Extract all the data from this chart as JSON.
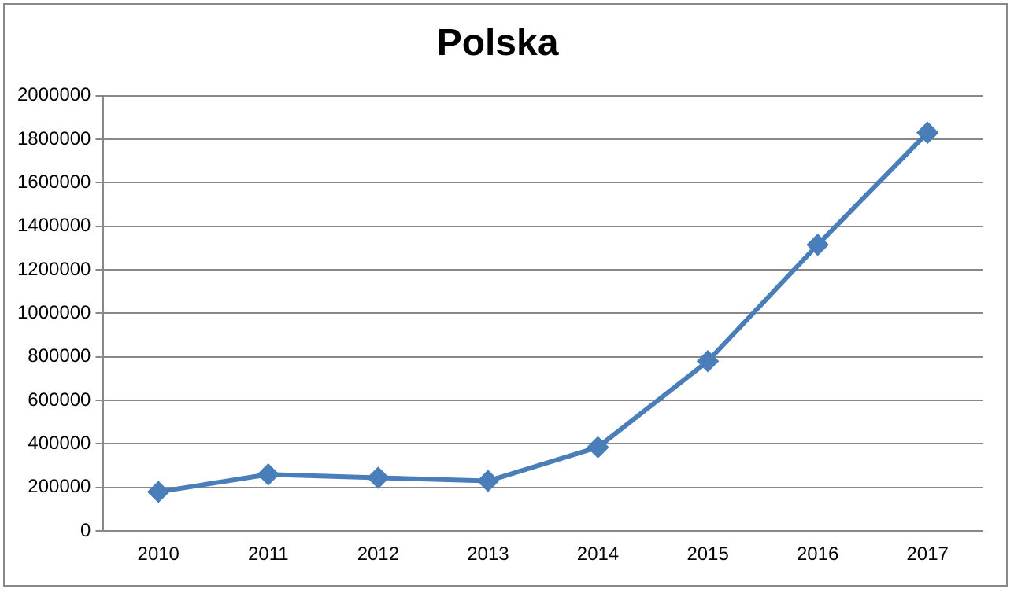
{
  "chart_data": {
    "type": "line",
    "title": "Polska",
    "categories": [
      "2010",
      "2011",
      "2012",
      "2013",
      "2014",
      "2015",
      "2016",
      "2017"
    ],
    "series": [
      {
        "color": "#4a7ebb",
        "values": [
          180000,
          260000,
          245000,
          230000,
          385000,
          780000,
          1315000,
          1830000
        ]
      }
    ],
    "ylim": [
      0,
      2000000
    ],
    "yticks": [
      0,
      200000,
      400000,
      600000,
      800000,
      1000000,
      1200000,
      1400000,
      1600000,
      1800000,
      2000000
    ],
    "grid": "y",
    "legend": false,
    "marker": "diamond",
    "line_style": "solid"
  }
}
